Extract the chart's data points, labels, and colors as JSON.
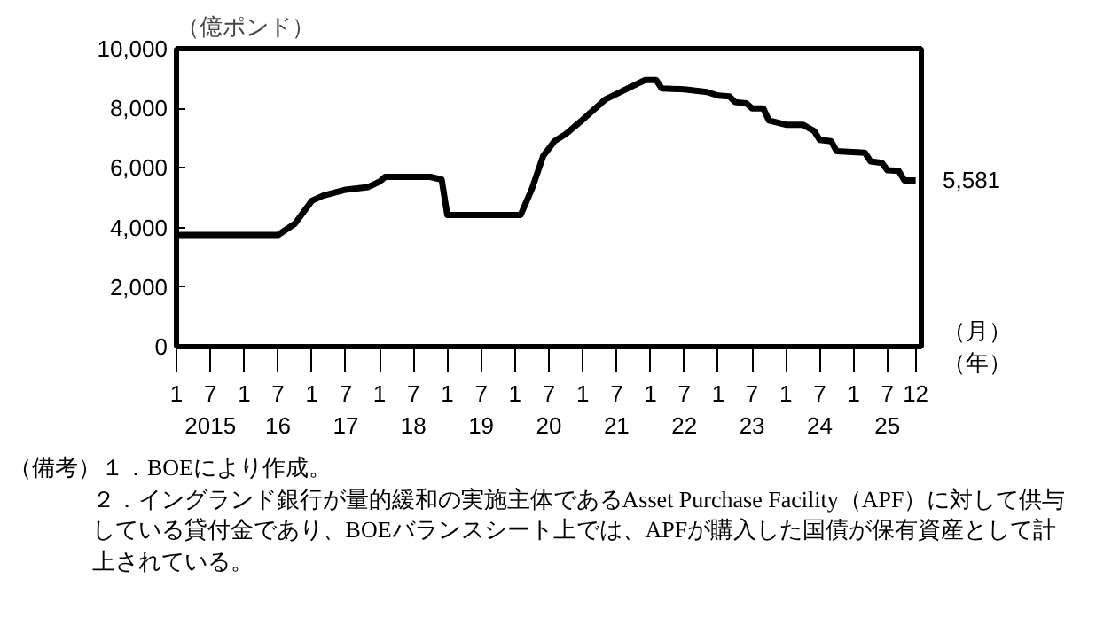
{
  "chart_data": {
    "type": "line",
    "ylabel": "（億ポンド）",
    "xlabel": "（月）（年）",
    "grid": false,
    "marker": "none",
    "line_style": "solid",
    "x": [
      "2015-01",
      "2016-07",
      "2016-10",
      "2017-01",
      "2017-03",
      "2017-07",
      "2017-11",
      "2018-01",
      "2018-02",
      "2018-10",
      "2018-12",
      "2019-01",
      "2020-02",
      "2020-04",
      "2020-06",
      "2020-08",
      "2020-10",
      "2021-01",
      "2021-05",
      "2021-09",
      "2021-12",
      "2022-02",
      "2022-03",
      "2022-07",
      "2022-11",
      "2023-01",
      "2023-03",
      "2023-04",
      "2023-06",
      "2023-07",
      "2023-09",
      "2023-10",
      "2024-01",
      "2024-04",
      "2024-06",
      "2024-07",
      "2024-09",
      "2024-10",
      "2025-03",
      "2025-04",
      "2025-06",
      "2025-07",
      "2025-09",
      "2025-10",
      "2025-12"
    ],
    "series": [
      {
        "color": "#000000",
        "values": [
          3750,
          3750,
          4130,
          4900,
          5070,
          5270,
          5360,
          5540,
          5700,
          5700,
          5610,
          4420,
          4420,
          5300,
          6400,
          6900,
          7140,
          7620,
          8300,
          8670,
          8950,
          8950,
          8670,
          8640,
          8550,
          8430,
          8400,
          8210,
          8170,
          8000,
          8000,
          7590,
          7450,
          7450,
          7240,
          6940,
          6900,
          6560,
          6510,
          6220,
          6170,
          5920,
          5900,
          5580,
          5581
        ],
        "value_labels": [
          null,
          null,
          null,
          null,
          null,
          null,
          null,
          null,
          null,
          null,
          null,
          null,
          null,
          null,
          null,
          null,
          null,
          null,
          null,
          null,
          null,
          null,
          null,
          null,
          null,
          null,
          null,
          null,
          null,
          null,
          null,
          null,
          null,
          null,
          null,
          null,
          null,
          null,
          null,
          null,
          null,
          null,
          null,
          null,
          "5,581"
        ]
      }
    ],
    "xlim": [
      "2015-01",
      "2026-01"
    ],
    "xticks": [
      {
        "value": "2015-01",
        "label": "1"
      },
      {
        "value": "2015-07",
        "label": "7\n2015"
      },
      {
        "value": "2016-01",
        "label": "1"
      },
      {
        "value": "2016-07",
        "label": "7\n16"
      },
      {
        "value": "2017-01",
        "label": "1"
      },
      {
        "value": "2017-07",
        "label": "7\n17"
      },
      {
        "value": "2018-01",
        "label": "1"
      },
      {
        "value": "2018-07",
        "label": "7\n18"
      },
      {
        "value": "2019-01",
        "label": "1"
      },
      {
        "value": "2019-07",
        "label": "7\n19"
      },
      {
        "value": "2020-01",
        "label": "1"
      },
      {
        "value": "2020-07",
        "label": "7\n20"
      },
      {
        "value": "2021-01",
        "label": "1"
      },
      {
        "value": "2021-07",
        "label": "7\n21"
      },
      {
        "value": "2022-01",
        "label": "1"
      },
      {
        "value": "2022-07",
        "label": "7\n22"
      },
      {
        "value": "2023-01",
        "label": "1"
      },
      {
        "value": "2023-07",
        "label": "7\n23"
      },
      {
        "value": "2024-01",
        "label": "1"
      },
      {
        "value": "2024-07",
        "label": "7\n24"
      },
      {
        "value": "2025-01",
        "label": "1"
      },
      {
        "value": "2025-07",
        "label": "7\n25"
      },
      {
        "value": "2025-12",
        "label": "12"
      }
    ],
    "ylim": [
      0,
      10000
    ],
    "yticks": [
      0,
      {
        "value": 2000,
        "label": "2,000"
      },
      {
        "value": 4000,
        "label": "4,000"
      },
      {
        "value": 6000,
        "label": "6,000"
      },
      {
        "value": 8000,
        "label": "8,000"
      },
      {
        "value": 10000,
        "label": "10,000"
      }
    ],
    "annotations": [
      "（備考）１．BOEにより作成。",
      "２．イングランド銀行が量的緩和の実施主体であるAsset Purchase Facility（APF）に対して供与している貸付金であり、BOEバランスシート上では、APFが購入した国債が保有資産として計上されている。"
    ]
  }
}
